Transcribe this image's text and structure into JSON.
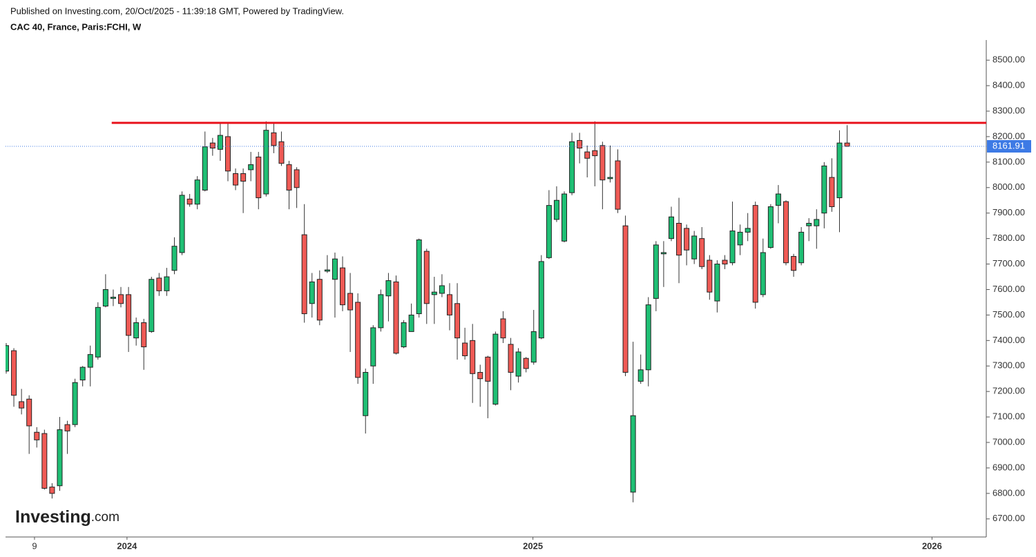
{
  "header": {
    "published": "Published on Investing.com, 20/Oct/2025 - 11:39:18 GMT, Powered by TradingView.",
    "symbol": "CAC 40, France, Paris:FCHI, W"
  },
  "logo": {
    "brand": "Investing",
    "suffix": ".com"
  },
  "chart_data": {
    "type": "candlestick",
    "up_color": "#1fbf74",
    "down_color": "#ef5a55",
    "open": [
      7280,
      7360,
      7160,
      7170,
      7040,
      7035,
      6825,
      6830,
      7070,
      7070,
      7245,
      7295,
      7335,
      7535,
      7565,
      7580,
      7580,
      7410,
      7470,
      7435,
      7645,
      7595,
      7675,
      7745,
      7955,
      7935,
      7990,
      8175,
      8150,
      8200,
      8055,
      8055,
      8070,
      8120,
      7975,
      8215,
      8180,
      8090,
      8070,
      7815,
      7545,
      7640,
      7672,
      7640,
      7685,
      7585,
      7550,
      7105,
      7300,
      7450,
      7575,
      7630,
      7375,
      7435,
      7505,
      7750,
      7580,
      7585,
      7580,
      7545,
      7390,
      7400,
      7275,
      7335,
      7150,
      7485,
      7385,
      7260,
      7330,
      7315,
      7410,
      7725,
      7875,
      7790,
      7980,
      8185,
      8140,
      8145,
      8165,
      8035,
      8105,
      7850,
      6805,
      7240,
      7285,
      7565,
      7740,
      7800,
      7860,
      7840,
      7720,
      7800,
      7715,
      7555,
      7715,
      7705,
      7775,
      7825,
      7930,
      7580,
      7765,
      7930,
      7945,
      7730,
      7705,
      7850,
      7850,
      7900,
      8040,
      7960,
      8175
    ],
    "high": [
      7390,
      7370,
      7210,
      7185,
      7060,
      7050,
      6840,
      7100,
      7085,
      7250,
      7300,
      7380,
      7550,
      7660,
      7600,
      7610,
      7610,
      7490,
      7485,
      7650,
      7665,
      7685,
      7805,
      7985,
      7975,
      8045,
      8220,
      8195,
      8250,
      8250,
      8075,
      8075,
      8140,
      8140,
      8260,
      8250,
      8220,
      8105,
      8080,
      7935,
      7665,
      7675,
      7735,
      7745,
      7730,
      7665,
      7585,
      7290,
      7460,
      7600,
      7665,
      7655,
      7480,
      7545,
      7800,
      7760,
      7650,
      7660,
      7625,
      7625,
      7450,
      7465,
      7305,
      7340,
      7435,
      7515,
      7410,
      7370,
      7335,
      7520,
      7735,
      7990,
      8005,
      7985,
      8215,
      8215,
      8165,
      8260,
      8180,
      8165,
      8150,
      7890,
      7395,
      7345,
      7570,
      7790,
      7790,
      7925,
      7960,
      7855,
      7830,
      7845,
      7735,
      7715,
      7735,
      7945,
      7855,
      7900,
      7945,
      7800,
      7935,
      8010,
      7950,
      7740,
      7845,
      7880,
      7915,
      8100,
      8115,
      8225,
      8245
    ],
    "low": [
      7270,
      7140,
      7110,
      6955,
      6980,
      6815,
      6780,
      6810,
      6955,
      7060,
      7220,
      7220,
      7325,
      7530,
      7535,
      7530,
      7355,
      7380,
      7285,
      7430,
      7575,
      7575,
      7660,
      7735,
      7925,
      7915,
      7985,
      8125,
      8105,
      8025,
      7990,
      7900,
      8025,
      7915,
      7965,
      8135,
      8085,
      7915,
      7920,
      7470,
      7490,
      7460,
      7665,
      7490,
      7515,
      7355,
      7230,
      7035,
      7230,
      7435,
      7475,
      7345,
      7370,
      7435,
      7490,
      7465,
      7465,
      7570,
      7440,
      7325,
      7325,
      7155,
      7140,
      7095,
      7145,
      7390,
      7205,
      7235,
      7275,
      7305,
      7405,
      7720,
      7865,
      7785,
      7970,
      8095,
      8040,
      8005,
      7915,
      8020,
      7900,
      7260,
      6765,
      7230,
      7220,
      7515,
      7610,
      7790,
      7625,
      7695,
      7700,
      7680,
      7560,
      7510,
      7680,
      7695,
      7735,
      7790,
      7525,
      7570,
      7760,
      7860,
      7695,
      7650,
      7695,
      7790,
      7760,
      7840,
      7905,
      7825,
      8160
    ],
    "close": [
      7380,
      7185,
      7135,
      7065,
      7010,
      6820,
      6800,
      7050,
      7045,
      7235,
      7295,
      7345,
      7530,
      7600,
      7570,
      7545,
      7420,
      7470,
      7375,
      7640,
      7595,
      7650,
      7770,
      7970,
      7935,
      8030,
      8160,
      8155,
      8205,
      8065,
      8010,
      8025,
      8090,
      7960,
      8225,
      8165,
      8095,
      7990,
      8000,
      7505,
      7630,
      7480,
      7677,
      7720,
      7540,
      7520,
      7255,
      7275,
      7450,
      7580,
      7635,
      7350,
      7470,
      7500,
      7795,
      7545,
      7590,
      7615,
      7500,
      7410,
      7340,
      7270,
      7250,
      7240,
      7425,
      7410,
      7275,
      7355,
      7290,
      7435,
      7710,
      7930,
      7950,
      7975,
      8180,
      8155,
      8115,
      8125,
      8030,
      8040,
      7915,
      7275,
      7105,
      7285,
      7540,
      7775,
      7745,
      7885,
      7735,
      7755,
      7810,
      7690,
      7590,
      7700,
      7700,
      7830,
      7825,
      7840,
      7550,
      7745,
      7925,
      7975,
      7705,
      7675,
      7825,
      7860,
      7875,
      8085,
      7925,
      8175,
      8161.91
    ],
    "xlim": [
      -0.09,
      128.2
    ],
    "xticks": [
      {
        "value": 3.7,
        "label": "9",
        "bold": false
      },
      {
        "value": 15.8,
        "label": "2024",
        "bold": true
      },
      {
        "value": 68.9,
        "label": "2025",
        "bold": true
      },
      {
        "value": 121.1,
        "label": "2026",
        "bold": true
      }
    ],
    "ylim": [
      6629,
      8579
    ],
    "yticks": [
      {
        "value": 6700,
        "label": "6700.00"
      },
      {
        "value": 6800,
        "label": "6800.00"
      },
      {
        "value": 6900,
        "label": "6900.00"
      },
      {
        "value": 7000,
        "label": "7000.00"
      },
      {
        "value": 7100,
        "label": "7100.00"
      },
      {
        "value": 7200,
        "label": "7200.00"
      },
      {
        "value": 7300,
        "label": "7300.00"
      },
      {
        "value": 7400,
        "label": "7400.00"
      },
      {
        "value": 7500,
        "label": "7500.00"
      },
      {
        "value": 7600,
        "label": "7600.00"
      },
      {
        "value": 7700,
        "label": "7700.00"
      },
      {
        "value": 7800,
        "label": "7800.00"
      },
      {
        "value": 7900,
        "label": "7900.00"
      },
      {
        "value": 8000,
        "label": "8000.00"
      },
      {
        "value": 8100,
        "label": "8100.00"
      },
      {
        "value": 8200,
        "label": "8200.00"
      },
      {
        "value": 8300,
        "label": "8300.00"
      },
      {
        "value": 8400,
        "label": "8400.00"
      },
      {
        "value": 8500,
        "label": "8500.00"
      }
    ],
    "last_price": 8161.91,
    "last_price_color": "#3d7ae5",
    "resistance": {
      "level": 8254,
      "from": 13.8,
      "color": "#e8101a"
    },
    "grid": false
  }
}
